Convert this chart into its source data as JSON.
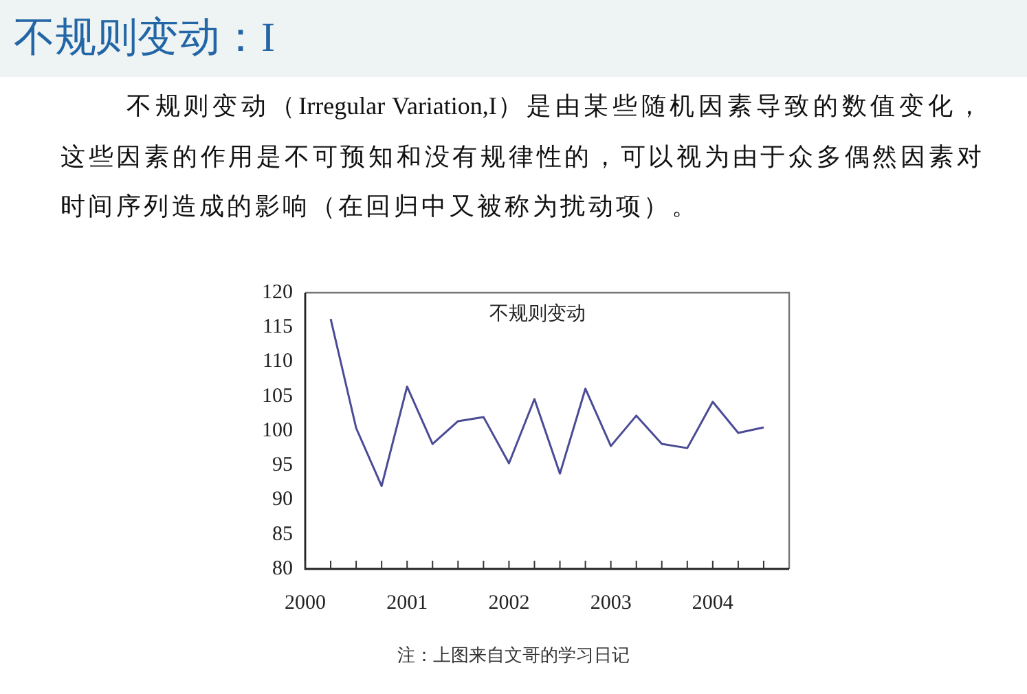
{
  "chart_data": {
    "type": "line",
    "title": "不规则变动：I",
    "subtitle": "不规则变动（Irregular Variation,I）是由某些随机因素导致的数值变化，这些因素的作用是不可预知和没有规律性的，可以视为由于众多偶然因素对时间序列造成的影响（在回归中又被称为扰动项）。",
    "annotations": [
      "不规则变动",
      "注：上图来自文哥的学习日记"
    ],
    "x": [
      2000.25,
      2000.5,
      2000.75,
      2001,
      2001.25,
      2001.5,
      2001.75,
      2002,
      2002.25,
      2002.5,
      2002.75,
      2003,
      2003.25,
      2003.5,
      2003.75,
      2004,
      2004.25,
      2004.5
    ],
    "values": [
      116.2,
      100.4,
      92,
      106.4,
      98.1,
      101.4,
      102,
      95.3,
      104.6,
      93.8,
      106.1,
      97.8,
      102.2,
      98.1,
      97.5,
      104.2,
      99.7,
      100.5
    ],
    "color": "#4b4b96",
    "xlim": [
      2000,
      2004.75
    ],
    "xticks": [
      2000,
      {
        "value": 2000.25,
        "label": null
      },
      {
        "value": 2000.5,
        "label": null
      },
      {
        "value": 2000.75,
        "label": null
      },
      2001,
      {
        "value": 2001.25,
        "label": null
      },
      {
        "value": 2001.5,
        "label": null
      },
      {
        "value": 2001.75,
        "label": null
      },
      2002,
      {
        "value": 2002.25,
        "label": null
      },
      {
        "value": 2002.5,
        "label": null
      },
      {
        "value": 2002.75,
        "label": null
      },
      2003,
      {
        "value": 2003.25,
        "label": null
      },
      {
        "value": 2003.5,
        "label": null
      },
      {
        "value": 2003.75,
        "label": null
      },
      2004,
      {
        "value": 2004.25,
        "label": null
      },
      {
        "value": 2004.5,
        "label": null
      }
    ],
    "ylim": [
      80,
      120
    ],
    "yticks": [
      80,
      85,
      90,
      95,
      100,
      105,
      110,
      115,
      120
    ],
    "grid": false,
    "legend": false,
    "marker": "none",
    "line_style": "solid"
  }
}
